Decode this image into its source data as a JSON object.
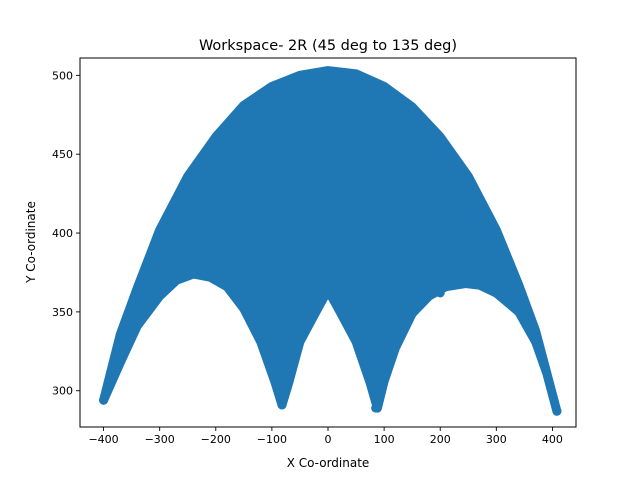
{
  "chart_data": {
    "type": "scatter",
    "title": "Workspace- 2R (45 deg to 135 deg)",
    "xlabel": "X Co-ordinate",
    "ylabel": "Y Co-ordinate",
    "xlim": [
      -442,
      442
    ],
    "ylim": [
      277,
      511
    ],
    "xticks": [
      -400,
      -300,
      -200,
      -100,
      0,
      100,
      200,
      300,
      400
    ],
    "yticks": [
      300,
      350,
      400,
      450,
      500
    ],
    "xtick_labels": [
      "−400",
      "−300",
      "−200",
      "−100",
      "0",
      "100",
      "200",
      "300",
      "400"
    ],
    "ytick_labels": [
      "300",
      "350",
      "400",
      "450",
      "500"
    ],
    "grid": false,
    "series_color": "#1f77b4",
    "outer_boundary": {
      "x": [
        -400,
        -370,
        -340,
        -300,
        -250,
        -200,
        -150,
        -100,
        -50,
        0,
        50,
        100,
        150,
        200,
        250,
        300,
        340,
        370,
        408
      ],
      "y": [
        294,
        336,
        365,
        402,
        436,
        461,
        481,
        493,
        500,
        503,
        501,
        493,
        480,
        461,
        436,
        402,
        367,
        338,
        287
      ]
    },
    "inner_boundary": {
      "x": [
        408,
        390,
        370,
        340,
        300,
        270,
        245,
        210,
        180,
        150,
        120,
        100,
        88,
        75,
        50,
        20,
        0,
        -20,
        -50,
        -70,
        -82,
        -95,
        -120,
        -150,
        -180,
        -210,
        -240,
        -270,
        -300,
        -340,
        -370,
        -400
      ],
      "y": [
        287,
        311,
        331,
        350,
        362,
        367,
        368,
        366,
        360,
        349,
        327,
        306,
        289,
        305,
        331,
        351,
        364,
        351,
        331,
        305,
        291,
        306,
        331,
        352,
        366,
        372,
        374,
        370,
        360,
        341,
        318,
        294
      ]
    },
    "point_markers": {
      "x": [
        -400,
        -82,
        85,
        408,
        -340,
        -200,
        200,
        340,
        -150,
        150,
        -370,
        370
      ],
      "y": [
        294,
        291,
        289,
        287,
        351,
        371,
        362,
        352,
        353,
        349,
        323,
        333
      ]
    }
  }
}
